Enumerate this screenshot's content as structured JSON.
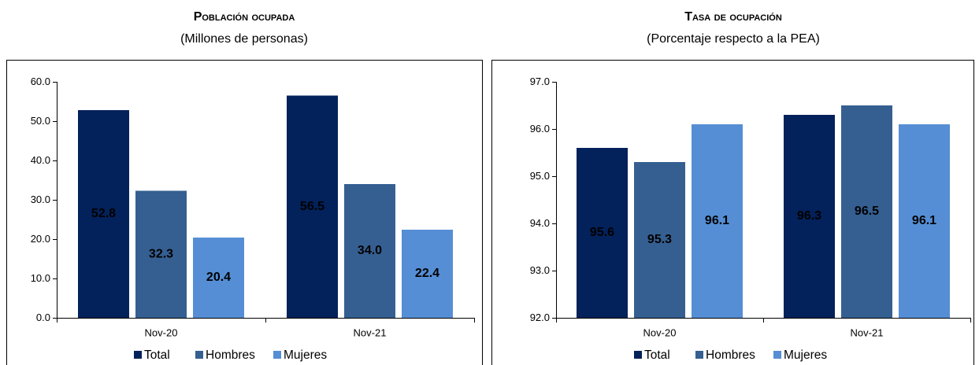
{
  "chart_data": [
    {
      "type": "bar",
      "title": "Población ocupada",
      "subtitle": "(Millones de personas)",
      "categories": [
        "Nov-20",
        "Nov-21"
      ],
      "series": [
        {
          "name": "Total",
          "color": "#03215a",
          "label_color": "#ffffff",
          "values": [
            52.8,
            56.5
          ]
        },
        {
          "name": "Hombres",
          "color": "#355f91",
          "label_color": "#ffffff",
          "values": [
            32.3,
            34.0
          ]
        },
        {
          "name": "Mujeres",
          "color": "#558ed5",
          "label_color": "#000000",
          "values": [
            20.4,
            22.4
          ]
        }
      ],
      "ylim": [
        0,
        60
      ],
      "yticks": [
        {
          "value": 0,
          "label": "0.0"
        },
        {
          "value": 10,
          "label": "10.0"
        },
        {
          "value": 20,
          "label": "20.0"
        },
        {
          "value": 30,
          "label": "30.0"
        },
        {
          "value": 40,
          "label": "40.0"
        },
        {
          "value": 50,
          "label": "50.0"
        },
        {
          "value": 60,
          "label": "60.0"
        }
      ],
      "grid": false,
      "legend": "bottom"
    },
    {
      "type": "bar",
      "title": "Tasa de ocupación",
      "subtitle": "(Porcentaje respecto a la PEA)",
      "categories": [
        "Nov-20",
        "Nov-21"
      ],
      "series": [
        {
          "name": "Total",
          "color": "#03215a",
          "label_color": "#ffffff",
          "values": [
            95.6,
            96.3
          ]
        },
        {
          "name": "Hombres",
          "color": "#355f91",
          "label_color": "#ffffff",
          "values": [
            95.3,
            96.5
          ]
        },
        {
          "name": "Mujeres",
          "color": "#558ed5",
          "label_color": "#000000",
          "values": [
            96.1,
            96.1
          ]
        }
      ],
      "ylim": [
        92,
        97
      ],
      "yticks": [
        {
          "value": 92,
          "label": "92.0"
        },
        {
          "value": 93,
          "label": "93.0"
        },
        {
          "value": 94,
          "label": "94.0"
        },
        {
          "value": 95,
          "label": "95.0"
        },
        {
          "value": 96,
          "label": "96.0"
        },
        {
          "value": 97,
          "label": "97.0"
        }
      ],
      "grid": false,
      "legend": "bottom"
    }
  ]
}
